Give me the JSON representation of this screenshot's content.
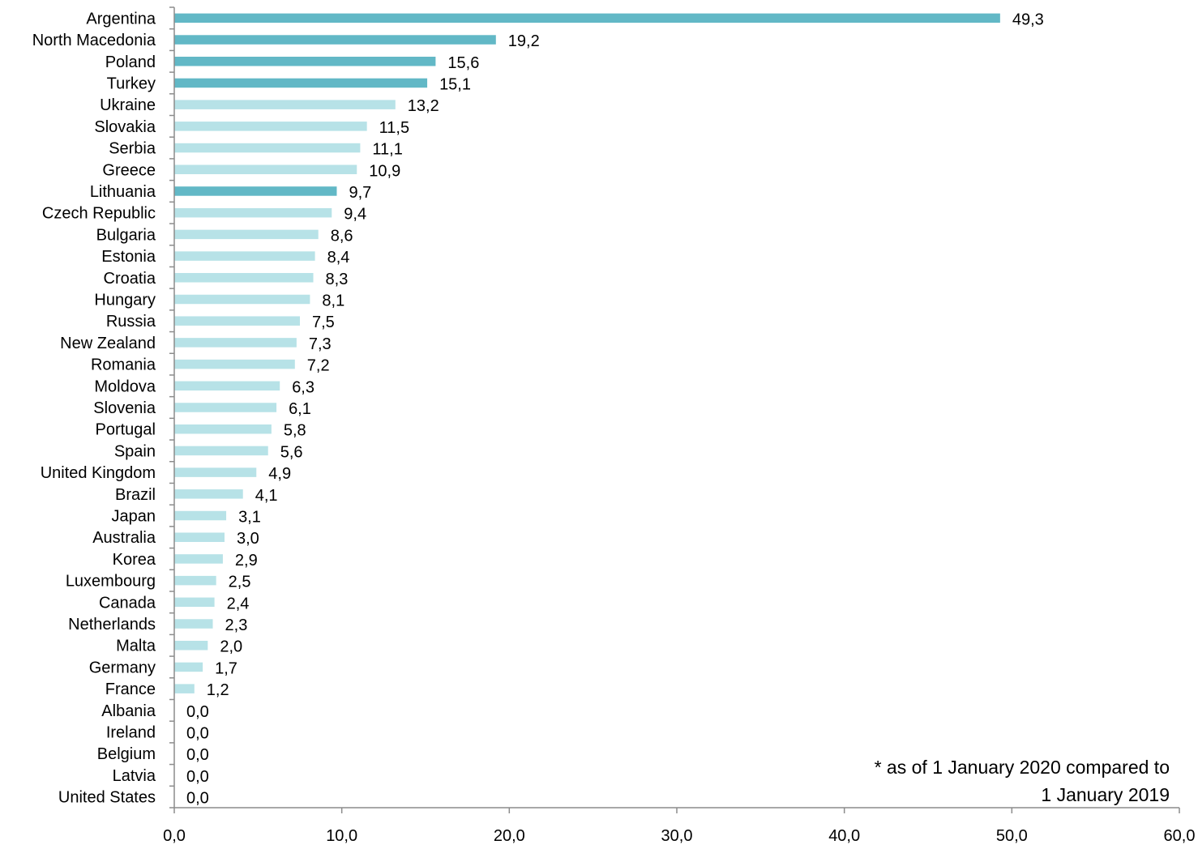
{
  "chart_data": {
    "type": "bar",
    "orientation": "horizontal",
    "categories": [
      "Argentina",
      "North Macedonia",
      "Poland",
      "Turkey",
      "Ukraine",
      "Slovakia",
      "Serbia",
      "Greece",
      "Lithuania",
      "Czech Republic",
      "Bulgaria",
      "Estonia",
      "Croatia",
      "Hungary",
      "Russia",
      "New Zealand",
      "Romania",
      "Moldova",
      "Slovenia",
      "Portugal",
      "Spain",
      "United Kingdom",
      "Brazil",
      "Japan",
      "Australia",
      "Korea",
      "Luxembourg",
      "Canada",
      "Netherlands",
      "Malta",
      "Germany",
      "France",
      "Albania",
      "Ireland",
      "Belgium",
      "Latvia",
      "United States"
    ],
    "values": [
      49.3,
      19.2,
      15.6,
      15.1,
      13.2,
      11.5,
      11.1,
      10.9,
      9.7,
      9.4,
      8.6,
      8.4,
      8.3,
      8.1,
      7.5,
      7.3,
      7.2,
      6.3,
      6.1,
      5.8,
      5.6,
      4.9,
      4.1,
      3.1,
      3.0,
      2.9,
      2.5,
      2.4,
      2.3,
      2.0,
      1.7,
      1.2,
      0.0,
      0.0,
      0.0,
      0.0,
      0.0
    ],
    "value_labels": [
      "49,3",
      "19,2",
      "15,6",
      "15,1",
      "13,2",
      "11,5",
      "11,1",
      "10,9",
      "9,7",
      "9,4",
      "8,6",
      "8,4",
      "8,3",
      "8,1",
      "7,5",
      "7,3",
      "7,2",
      "6,3",
      "6,1",
      "5,8",
      "5,6",
      "4,9",
      "4,1",
      "3,1",
      "3,0",
      "2,9",
      "2,5",
      "2,4",
      "2,3",
      "2,0",
      "1,7",
      "1,2",
      "0,0",
      "0,0",
      "0,0",
      "0,0",
      "0,0"
    ],
    "highlighted": [
      true,
      true,
      true,
      true,
      false,
      false,
      false,
      false,
      true,
      false,
      false,
      false,
      false,
      false,
      false,
      false,
      false,
      false,
      false,
      false,
      false,
      false,
      false,
      false,
      false,
      false,
      false,
      false,
      false,
      false,
      false,
      false,
      false,
      false,
      false,
      false,
      false
    ],
    "xlim": [
      0,
      60
    ],
    "x_ticks": [
      0,
      10,
      20,
      30,
      40,
      50,
      60
    ],
    "x_tick_labels": [
      "0,0",
      "10,0",
      "20,0",
      "30,0",
      "40,0",
      "50,0",
      "60,0"
    ],
    "title": "",
    "xlabel": "",
    "ylabel": "",
    "grid": false,
    "legend": "none",
    "colors": {
      "highlight": "#62b8c6",
      "normal": "#b7e2e7",
      "axis": "#8c8c8c",
      "text": "#000000"
    }
  },
  "note": {
    "line1": "* as of 1 January 2020 compared to",
    "line2": "1 January 2019"
  }
}
